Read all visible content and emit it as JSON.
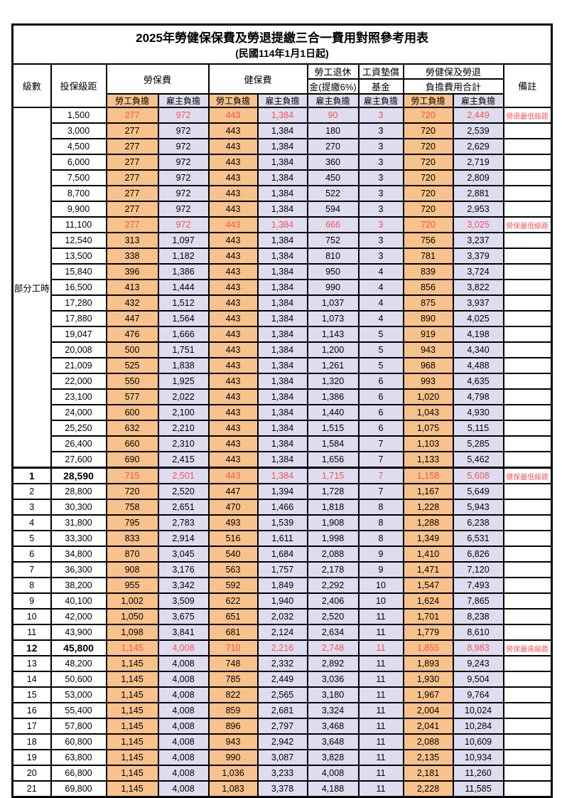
{
  "page": {
    "title": "2025年勞健保保費及勞退提繳三合一費用對照參考用表",
    "subtitle": "(民國114年1月1日起)"
  },
  "colors": {
    "employee_bg": "#F8C28C",
    "employer_bg": "#DEDDEF",
    "highlight_text": "#FA5252",
    "border": "#000000"
  },
  "header": {
    "level": "級數",
    "bracket": "投保級距",
    "labor": "勞保費",
    "health": "健保費",
    "pension_line1": "勞工退休",
    "pension_line2": "金(提繳6%)",
    "fund_line1": "工資墊償",
    "fund_line2": "基金",
    "total_line1": "勞健保及勞退",
    "total_line2": "負擔費用合計",
    "remark": "備註",
    "employee": "勞工負擔",
    "employer": "雇主負擔"
  },
  "part_time_label": "部分工時",
  "rows": [
    {
      "level": null,
      "bracket": "1,500",
      "vals": [
        "277",
        "972",
        "443",
        "1,384",
        "90",
        "3",
        "720",
        "2,449"
      ],
      "remark": "勞退最低級距",
      "red": true,
      "bold": false
    },
    {
      "level": null,
      "bracket": "3,000",
      "vals": [
        "277",
        "972",
        "443",
        "1,384",
        "180",
        "3",
        "720",
        "2,539"
      ],
      "remark": "",
      "red": false,
      "bold": false
    },
    {
      "level": null,
      "bracket": "4,500",
      "vals": [
        "277",
        "972",
        "443",
        "1,384",
        "270",
        "3",
        "720",
        "2,629"
      ],
      "remark": "",
      "red": false,
      "bold": false
    },
    {
      "level": null,
      "bracket": "6,000",
      "vals": [
        "277",
        "972",
        "443",
        "1,384",
        "360",
        "3",
        "720",
        "2,719"
      ],
      "remark": "",
      "red": false,
      "bold": false
    },
    {
      "level": null,
      "bracket": "7,500",
      "vals": [
        "277",
        "972",
        "443",
        "1,384",
        "450",
        "3",
        "720",
        "2,809"
      ],
      "remark": "",
      "red": false,
      "bold": false
    },
    {
      "level": null,
      "bracket": "8,700",
      "vals": [
        "277",
        "972",
        "443",
        "1,384",
        "522",
        "3",
        "720",
        "2,881"
      ],
      "remark": "",
      "red": false,
      "bold": false
    },
    {
      "level": null,
      "bracket": "9,900",
      "vals": [
        "277",
        "972",
        "443",
        "1,384",
        "594",
        "3",
        "720",
        "2,953"
      ],
      "remark": "",
      "red": false,
      "bold": false
    },
    {
      "level": null,
      "bracket": "11,100",
      "vals": [
        "277",
        "972",
        "443",
        "1,384",
        "666",
        "3",
        "720",
        "3,025"
      ],
      "remark": "勞保最低級距",
      "red": true,
      "bold": false
    },
    {
      "level": null,
      "bracket": "12,540",
      "vals": [
        "313",
        "1,097",
        "443",
        "1,384",
        "752",
        "3",
        "756",
        "3,237"
      ],
      "remark": "",
      "red": false,
      "bold": false
    },
    {
      "level": null,
      "bracket": "13,500",
      "vals": [
        "338",
        "1,182",
        "443",
        "1,384",
        "810",
        "3",
        "781",
        "3,379"
      ],
      "remark": "",
      "red": false,
      "bold": false
    },
    {
      "level": null,
      "bracket": "15,840",
      "vals": [
        "396",
        "1,386",
        "443",
        "1,384",
        "950",
        "4",
        "839",
        "3,724"
      ],
      "remark": "",
      "red": false,
      "bold": false
    },
    {
      "level": null,
      "bracket": "16,500",
      "vals": [
        "413",
        "1,444",
        "443",
        "1,384",
        "990",
        "4",
        "856",
        "3,822"
      ],
      "remark": "",
      "red": false,
      "bold": false
    },
    {
      "level": null,
      "bracket": "17,280",
      "vals": [
        "432",
        "1,512",
        "443",
        "1,384",
        "1,037",
        "4",
        "875",
        "3,937"
      ],
      "remark": "",
      "red": false,
      "bold": false
    },
    {
      "level": null,
      "bracket": "17,880",
      "vals": [
        "447",
        "1,564",
        "443",
        "1,384",
        "1,073",
        "4",
        "890",
        "4,025"
      ],
      "remark": "",
      "red": false,
      "bold": false
    },
    {
      "level": null,
      "bracket": "19,047",
      "vals": [
        "476",
        "1,666",
        "443",
        "1,384",
        "1,143",
        "5",
        "919",
        "4,198"
      ],
      "remark": "",
      "red": false,
      "bold": false
    },
    {
      "level": null,
      "bracket": "20,008",
      "vals": [
        "500",
        "1,751",
        "443",
        "1,384",
        "1,200",
        "5",
        "943",
        "4,340"
      ],
      "remark": "",
      "red": false,
      "bold": false
    },
    {
      "level": null,
      "bracket": "21,009",
      "vals": [
        "525",
        "1,838",
        "443",
        "1,384",
        "1,261",
        "5",
        "968",
        "4,488"
      ],
      "remark": "",
      "red": false,
      "bold": false
    },
    {
      "level": null,
      "bracket": "22,000",
      "vals": [
        "550",
        "1,925",
        "443",
        "1,384",
        "1,320",
        "6",
        "993",
        "4,635"
      ],
      "remark": "",
      "red": false,
      "bold": false
    },
    {
      "level": null,
      "bracket": "23,100",
      "vals": [
        "577",
        "2,022",
        "443",
        "1,384",
        "1,386",
        "6",
        "1,020",
        "4,798"
      ],
      "remark": "",
      "red": false,
      "bold": false
    },
    {
      "level": null,
      "bracket": "24,000",
      "vals": [
        "600",
        "2,100",
        "443",
        "1,384",
        "1,440",
        "6",
        "1,043",
        "4,930"
      ],
      "remark": "",
      "red": false,
      "bold": false
    },
    {
      "level": null,
      "bracket": "25,250",
      "vals": [
        "632",
        "2,210",
        "443",
        "1,384",
        "1,515",
        "6",
        "1,075",
        "5,115"
      ],
      "remark": "",
      "red": false,
      "bold": false
    },
    {
      "level": null,
      "bracket": "26,400",
      "vals": [
        "660",
        "2,310",
        "443",
        "1,384",
        "1,584",
        "7",
        "1,103",
        "5,285"
      ],
      "remark": "",
      "red": false,
      "bold": false
    },
    {
      "level": null,
      "bracket": "27,600",
      "vals": [
        "690",
        "2,415",
        "443",
        "1,384",
        "1,656",
        "7",
        "1,133",
        "5,462"
      ],
      "remark": "",
      "red": false,
      "bold": false
    },
    {
      "level": "1",
      "bracket": "28,590",
      "vals": [
        "715",
        "2,501",
        "443",
        "1,384",
        "1,715",
        "7",
        "1,158",
        "5,608"
      ],
      "remark": "健保最低級距",
      "red": true,
      "bold": true,
      "sep": true
    },
    {
      "level": "2",
      "bracket": "28,800",
      "vals": [
        "720",
        "2,520",
        "447",
        "1,394",
        "1,728",
        "7",
        "1,167",
        "5,649"
      ],
      "remark": "",
      "red": false,
      "bold": false
    },
    {
      "level": "3",
      "bracket": "30,300",
      "vals": [
        "758",
        "2,651",
        "470",
        "1,466",
        "1,818",
        "8",
        "1,228",
        "5,943"
      ],
      "remark": "",
      "red": false,
      "bold": false
    },
    {
      "level": "4",
      "bracket": "31,800",
      "vals": [
        "795",
        "2,783",
        "493",
        "1,539",
        "1,908",
        "8",
        "1,288",
        "6,238"
      ],
      "remark": "",
      "red": false,
      "bold": false
    },
    {
      "level": "5",
      "bracket": "33,300",
      "vals": [
        "833",
        "2,914",
        "516",
        "1,611",
        "1,998",
        "8",
        "1,349",
        "6,531"
      ],
      "remark": "",
      "red": false,
      "bold": false
    },
    {
      "level": "6",
      "bracket": "34,800",
      "vals": [
        "870",
        "3,045",
        "540",
        "1,684",
        "2,088",
        "9",
        "1,410",
        "6,826"
      ],
      "remark": "",
      "red": false,
      "bold": false
    },
    {
      "level": "7",
      "bracket": "36,300",
      "vals": [
        "908",
        "3,176",
        "563",
        "1,757",
        "2,178",
        "9",
        "1,471",
        "7,120"
      ],
      "remark": "",
      "red": false,
      "bold": false
    },
    {
      "level": "8",
      "bracket": "38,200",
      "vals": [
        "955",
        "3,342",
        "592",
        "1,849",
        "2,292",
        "10",
        "1,547",
        "7,493"
      ],
      "remark": "",
      "red": false,
      "bold": false
    },
    {
      "level": "9",
      "bracket": "40,100",
      "vals": [
        "1,002",
        "3,509",
        "622",
        "1,940",
        "2,406",
        "10",
        "1,624",
        "7,865"
      ],
      "remark": "",
      "red": false,
      "bold": false
    },
    {
      "level": "10",
      "bracket": "42,000",
      "vals": [
        "1,050",
        "3,675",
        "651",
        "2,032",
        "2,520",
        "11",
        "1,701",
        "8,238"
      ],
      "remark": "",
      "red": false,
      "bold": false
    },
    {
      "level": "11",
      "bracket": "43,900",
      "vals": [
        "1,098",
        "3,841",
        "681",
        "2,124",
        "2,634",
        "11",
        "1,779",
        "8,610"
      ],
      "remark": "",
      "red": false,
      "bold": false
    },
    {
      "level": "12",
      "bracket": "45,800",
      "vals": [
        "1,145",
        "4,008",
        "710",
        "2,216",
        "2,748",
        "11",
        "1,855",
        "8,983"
      ],
      "remark": "勞保最高級距",
      "red": true,
      "bold": true
    },
    {
      "level": "13",
      "bracket": "48,200",
      "vals": [
        "1,145",
        "4,008",
        "748",
        "2,332",
        "2,892",
        "11",
        "1,893",
        "9,243"
      ],
      "remark": "",
      "red": false,
      "bold": false
    },
    {
      "level": "14",
      "bracket": "50,600",
      "vals": [
        "1,145",
        "4,008",
        "785",
        "2,449",
        "3,036",
        "11",
        "1,930",
        "9,504"
      ],
      "remark": "",
      "red": false,
      "bold": false
    },
    {
      "level": "15",
      "bracket": "53,000",
      "vals": [
        "1,145",
        "4,008",
        "822",
        "2,565",
        "3,180",
        "11",
        "1,967",
        "9,764"
      ],
      "remark": "",
      "red": false,
      "bold": false
    },
    {
      "level": "16",
      "bracket": "55,400",
      "vals": [
        "1,145",
        "4,008",
        "859",
        "2,681",
        "3,324",
        "11",
        "2,004",
        "10,024"
      ],
      "remark": "",
      "red": false,
      "bold": false
    },
    {
      "level": "17",
      "bracket": "57,800",
      "vals": [
        "1,145",
        "4,008",
        "896",
        "2,797",
        "3,468",
        "11",
        "2,041",
        "10,284"
      ],
      "remark": "",
      "red": false,
      "bold": false
    },
    {
      "level": "18",
      "bracket": "60,800",
      "vals": [
        "1,145",
        "4,008",
        "943",
        "2,942",
        "3,648",
        "11",
        "2,088",
        "10,609"
      ],
      "remark": "",
      "red": false,
      "bold": false
    },
    {
      "level": "19",
      "bracket": "63,800",
      "vals": [
        "1,145",
        "4,008",
        "990",
        "3,087",
        "3,828",
        "11",
        "2,135",
        "10,934"
      ],
      "remark": "",
      "red": false,
      "bold": false
    },
    {
      "level": "20",
      "bracket": "66,800",
      "vals": [
        "1,145",
        "4,008",
        "1,036",
        "3,233",
        "4,008",
        "11",
        "2,181",
        "11,260"
      ],
      "remark": "",
      "red": false,
      "bold": false
    },
    {
      "level": "21",
      "bracket": "69,800",
      "vals": [
        "1,145",
        "4,008",
        "1,083",
        "3,378",
        "4,188",
        "11",
        "2,228",
        "11,585"
      ],
      "remark": "",
      "red": false,
      "bold": false
    }
  ]
}
